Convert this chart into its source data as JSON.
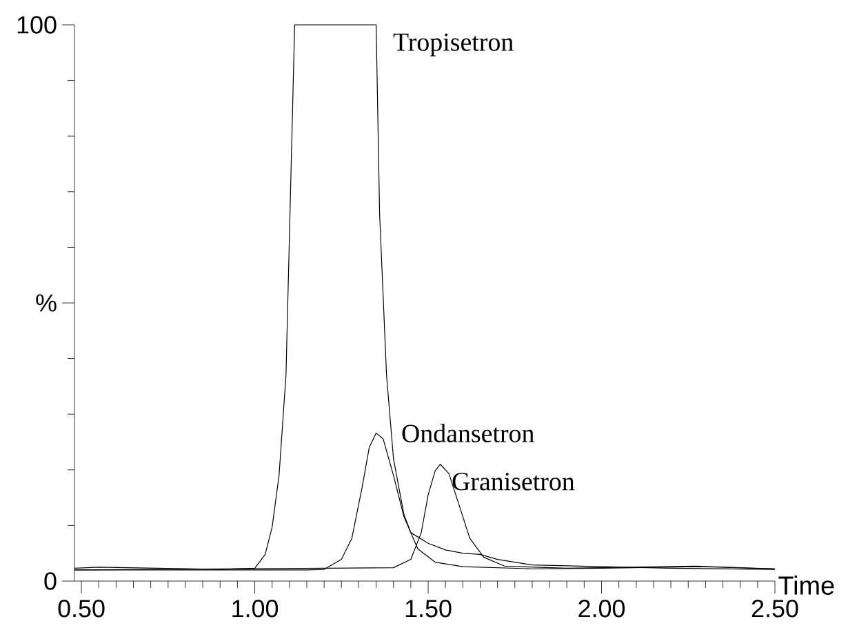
{
  "chart_data": {
    "type": "line",
    "xlabel": "Time",
    "xlim": [
      0.48,
      2.5
    ],
    "ylim": [
      0,
      100
    ],
    "xticks": [
      {
        "value": 0.5,
        "label": "0.50"
      },
      {
        "value": 0.55,
        "label": null
      },
      {
        "value": 0.6,
        "label": null
      },
      {
        "value": 0.65,
        "label": null
      },
      {
        "value": 0.7,
        "label": null
      },
      {
        "value": 0.75,
        "label": null
      },
      {
        "value": 0.8,
        "label": null
      },
      {
        "value": 0.85,
        "label": null
      },
      {
        "value": 0.9,
        "label": null
      },
      {
        "value": 0.95,
        "label": null
      },
      {
        "value": 1.0,
        "label": "1.00"
      },
      {
        "value": 1.05,
        "label": null
      },
      {
        "value": 1.1,
        "label": null
      },
      {
        "value": 1.15,
        "label": null
      },
      {
        "value": 1.2,
        "label": null
      },
      {
        "value": 1.25,
        "label": null
      },
      {
        "value": 1.3,
        "label": null
      },
      {
        "value": 1.35,
        "label": null
      },
      {
        "value": 1.4,
        "label": null
      },
      {
        "value": 1.45,
        "label": null
      },
      {
        "value": 1.5,
        "label": "1.50"
      },
      {
        "value": 1.55,
        "label": null
      },
      {
        "value": 1.6,
        "label": null
      },
      {
        "value": 1.65,
        "label": null
      },
      {
        "value": 1.7,
        "label": null
      },
      {
        "value": 1.75,
        "label": null
      },
      {
        "value": 1.8,
        "label": null
      },
      {
        "value": 1.85,
        "label": null
      },
      {
        "value": 1.9,
        "label": null
      },
      {
        "value": 1.95,
        "label": null
      },
      {
        "value": 2.0,
        "label": "2.00"
      },
      {
        "value": 2.05,
        "label": null
      },
      {
        "value": 2.1,
        "label": null
      },
      {
        "value": 2.15,
        "label": null
      },
      {
        "value": 2.2,
        "label": null
      },
      {
        "value": 2.25,
        "label": null
      },
      {
        "value": 2.3,
        "label": null
      },
      {
        "value": 2.35,
        "label": null
      },
      {
        "value": 2.4,
        "label": null
      },
      {
        "value": 2.45,
        "label": null
      },
      {
        "value": 2.5,
        "label": "2.50"
      }
    ],
    "yticks": [
      0,
      {
        "value": 10,
        "label": null
      },
      {
        "value": 20,
        "label": null
      },
      {
        "value": 30,
        "label": null
      },
      {
        "value": 40,
        "label": null
      },
      {
        "value": 50,
        "label": "%"
      },
      {
        "value": 60,
        "label": null
      },
      {
        "value": 70,
        "label": null
      },
      {
        "value": 80,
        "label": null
      },
      {
        "value": 90,
        "label": null
      },
      100
    ],
    "grid": false,
    "legend": false,
    "marker": "none",
    "line_style": "solid",
    "series": [
      {
        "name": "Tropisetron",
        "color": "#000000",
        "x": [
          0.48,
          0.55,
          0.9,
          1.0,
          1.03,
          1.05,
          1.07,
          1.09,
          1.115,
          1.35,
          1.36,
          1.38,
          1.4,
          1.43,
          1.45,
          1.5,
          1.55,
          1.6,
          1.65,
          1.7,
          1.8,
          2.0,
          2.2,
          2.5
        ],
        "values": [
          2.3,
          2.5,
          2.1,
          2.3,
          4.8,
          9.7,
          19,
          37,
          100,
          100,
          66,
          37,
          22,
          12,
          8.7,
          6.8,
          5.6,
          5.0,
          4.8,
          3.9,
          2.9,
          2.6,
          2.3,
          2.1
        ]
      },
      {
        "name": "Ondansetron",
        "color": "#000000",
        "x": [
          0.48,
          1.15,
          1.2,
          1.25,
          1.28,
          1.31,
          1.33,
          1.35,
          1.37,
          1.4,
          1.43,
          1.47,
          1.52,
          1.6,
          1.8,
          2.0,
          2.27,
          2.5
        ],
        "values": [
          2.0,
          2.0,
          2.1,
          3.9,
          7.7,
          17,
          24,
          26.6,
          25.6,
          19,
          11.6,
          5.8,
          3.4,
          2.6,
          2.2,
          2.3,
          2.6,
          2.2
        ]
      },
      {
        "name": "Granisetron",
        "color": "#000000",
        "x": [
          0.48,
          1.4,
          1.45,
          1.48,
          1.5,
          1.52,
          1.535,
          1.56,
          1.59,
          1.62,
          1.66,
          1.72,
          1.9,
          2.27,
          2.5
        ],
        "values": [
          2.0,
          2.4,
          3.9,
          8.7,
          15.5,
          19.8,
          21,
          19.3,
          13.5,
          7.7,
          4.3,
          2.7,
          2.3,
          2.7,
          2.2
        ]
      }
    ]
  }
}
